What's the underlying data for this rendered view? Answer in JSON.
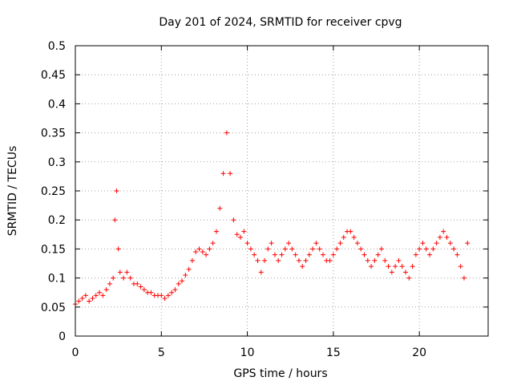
{
  "chart_data": {
    "type": "scatter",
    "title": "Day 201 of 2024, SRMTID for receiver cpvg",
    "xlabel": "GPS time / hours",
    "ylabel": "SRMTID / TECUs",
    "xlim": [
      0,
      24
    ],
    "ylim": [
      0,
      0.5
    ],
    "x_ticks": [
      0,
      5,
      10,
      15,
      20
    ],
    "y_ticks": [
      0,
      0.05,
      0.1,
      0.15,
      0.2,
      0.25,
      0.3,
      0.35,
      0.4,
      0.45,
      0.5
    ],
    "x_tick_labels": [
      "0",
      "5",
      "10",
      "15",
      "20"
    ],
    "y_tick_labels": [
      "0",
      "0.05",
      "0.1",
      "0.15",
      "0.2",
      "0.25",
      "0.3",
      "0.35",
      "0.4",
      "0.45",
      "0.5"
    ],
    "grid": true,
    "marker": "+",
    "color": "#ff0000",
    "series": [
      {
        "name": "SRMTID",
        "x": [
          0.0,
          0.2,
          0.4,
          0.6,
          0.8,
          1.0,
          1.2,
          1.4,
          1.6,
          1.8,
          2.0,
          2.2,
          2.3,
          2.4,
          2.5,
          2.6,
          2.8,
          3.0,
          3.2,
          3.4,
          3.6,
          3.8,
          4.0,
          4.2,
          4.4,
          4.6,
          4.8,
          5.0,
          5.2,
          5.4,
          5.6,
          5.8,
          6.0,
          6.2,
          6.4,
          6.6,
          6.8,
          7.0,
          7.2,
          7.4,
          7.6,
          7.8,
          8.0,
          8.2,
          8.4,
          8.6,
          8.8,
          9.0,
          9.2,
          9.4,
          9.6,
          9.8,
          10.0,
          10.2,
          10.4,
          10.6,
          10.8,
          11.0,
          11.2,
          11.4,
          11.6,
          11.8,
          12.0,
          12.2,
          12.4,
          12.6,
          12.8,
          13.0,
          13.2,
          13.4,
          13.6,
          13.8,
          14.0,
          14.2,
          14.4,
          14.6,
          14.8,
          15.0,
          15.2,
          15.4,
          15.6,
          15.8,
          16.0,
          16.2,
          16.4,
          16.6,
          16.8,
          17.0,
          17.2,
          17.4,
          17.6,
          17.8,
          18.0,
          18.2,
          18.4,
          18.6,
          18.8,
          19.0,
          19.2,
          19.4,
          19.6,
          19.8,
          20.0,
          20.2,
          20.4,
          20.6,
          20.8,
          21.0,
          21.2,
          21.4,
          21.6,
          21.8,
          22.0,
          22.2,
          22.4,
          22.6,
          22.8
        ],
        "y": [
          0.055,
          0.06,
          0.065,
          0.07,
          0.06,
          0.065,
          0.07,
          0.075,
          0.07,
          0.08,
          0.09,
          0.1,
          0.2,
          0.25,
          0.15,
          0.11,
          0.1,
          0.11,
          0.1,
          0.09,
          0.09,
          0.085,
          0.08,
          0.075,
          0.075,
          0.07,
          0.07,
          0.07,
          0.065,
          0.07,
          0.075,
          0.08,
          0.09,
          0.095,
          0.105,
          0.115,
          0.13,
          0.145,
          0.15,
          0.145,
          0.14,
          0.15,
          0.16,
          0.18,
          0.22,
          0.28,
          0.35,
          0.28,
          0.2,
          0.175,
          0.17,
          0.18,
          0.16,
          0.15,
          0.14,
          0.13,
          0.11,
          0.13,
          0.15,
          0.16,
          0.14,
          0.13,
          0.14,
          0.15,
          0.16,
          0.15,
          0.14,
          0.13,
          0.12,
          0.13,
          0.14,
          0.15,
          0.16,
          0.15,
          0.14,
          0.13,
          0.13,
          0.14,
          0.15,
          0.16,
          0.17,
          0.18,
          0.18,
          0.17,
          0.16,
          0.15,
          0.14,
          0.13,
          0.12,
          0.13,
          0.14,
          0.15,
          0.13,
          0.12,
          0.11,
          0.12,
          0.13,
          0.12,
          0.11,
          0.1,
          0.12,
          0.14,
          0.15,
          0.16,
          0.15,
          0.14,
          0.15,
          0.16,
          0.17,
          0.18,
          0.17,
          0.16,
          0.15,
          0.14,
          0.12,
          0.1,
          0.16
        ]
      }
    ]
  }
}
